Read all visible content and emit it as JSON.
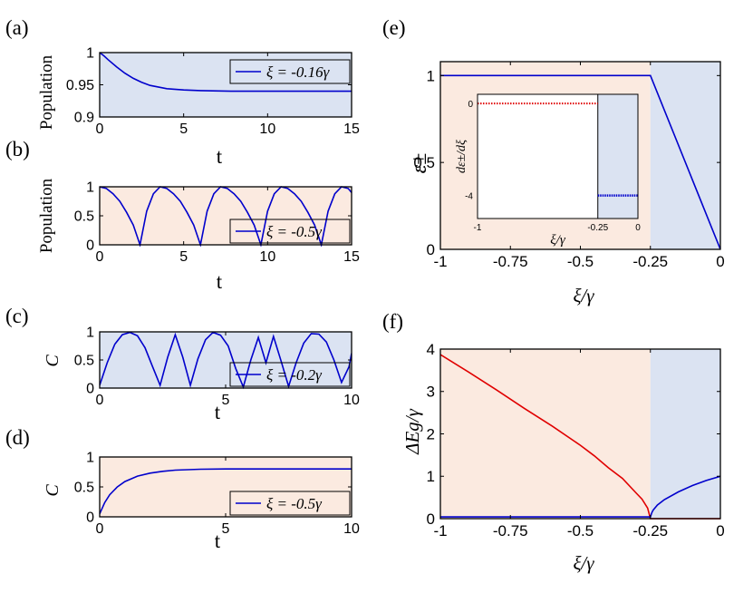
{
  "colors": {
    "blue_shade": "#dbe3f2",
    "orange_shade": "#fbeae0",
    "blue_line": "#0000cc",
    "red_line": "#e00000",
    "axis": "#000000"
  },
  "chart_data": [
    {
      "id": "a",
      "type": "line",
      "panel_label": "(a)",
      "xlabel": "t",
      "ylabel": "Population",
      "xlim": [
        0,
        15
      ],
      "ylim": [
        0.9,
        1.0
      ],
      "xticks": [
        0,
        5,
        10,
        15
      ],
      "xtick_labels": [
        "0",
        "5",
        "10",
        "15"
      ],
      "yticks": [
        0.9,
        0.95,
        1.0
      ],
      "ytick_labels": [
        "0.9",
        "0.95",
        "1"
      ],
      "background": "blue",
      "legend": "ξ = -0.16γ",
      "legend_position": "top-right",
      "series": [
        {
          "x": [
            0,
            0.25,
            0.5,
            1,
            1.5,
            2,
            2.5,
            3,
            4,
            5,
            6,
            8,
            10,
            12,
            15
          ],
          "y": [
            1.0,
            0.995,
            0.989,
            0.978,
            0.968,
            0.96,
            0.954,
            0.949,
            0.944,
            0.942,
            0.941,
            0.94,
            0.94,
            0.94,
            0.94
          ]
        }
      ]
    },
    {
      "id": "b",
      "type": "line",
      "panel_label": "(b)",
      "xlabel": "t",
      "ylabel": "Population",
      "xlim": [
        0,
        15
      ],
      "ylim": [
        0,
        1
      ],
      "xticks": [
        0,
        5,
        10,
        15
      ],
      "xtick_labels": [
        "0",
        "5",
        "10",
        "15"
      ],
      "yticks": [
        0,
        0.5,
        1
      ],
      "ytick_labels": [
        "0",
        "0.5",
        "1"
      ],
      "background": "orange",
      "legend": "ξ = -0.5γ",
      "legend_position": "bottom-right",
      "series": [
        {
          "x": [
            0,
            0.4,
            0.8,
            1.2,
            1.6,
            2.0,
            2.4,
            2.8,
            3.2,
            3.6,
            4.0,
            4.4,
            4.8,
            5.2,
            5.6,
            6.0,
            6.4,
            6.8,
            7.2,
            7.6,
            8.0,
            8.4,
            8.8,
            9.2,
            9.6,
            10.0,
            10.4,
            10.8,
            11.2,
            11.6,
            12.0,
            12.4,
            12.8,
            13.2,
            13.6,
            14.0,
            14.4,
            14.8,
            15.0
          ],
          "y": [
            1.0,
            0.97,
            0.88,
            0.75,
            0.56,
            0.34,
            0.0,
            0.58,
            0.88,
            1.0,
            0.97,
            0.88,
            0.75,
            0.56,
            0.34,
            0.0,
            0.58,
            0.88,
            1.0,
            0.97,
            0.88,
            0.75,
            0.56,
            0.34,
            0.0,
            0.58,
            0.88,
            1.0,
            0.97,
            0.88,
            0.75,
            0.56,
            0.34,
            0.0,
            0.58,
            0.88,
            1.0,
            0.97,
            0.9
          ]
        }
      ]
    },
    {
      "id": "c",
      "type": "line",
      "panel_label": "(c)",
      "xlabel": "t",
      "ylabel": "C",
      "xlim": [
        0,
        10
      ],
      "ylim": [
        0,
        1
      ],
      "xticks": [
        0,
        5,
        10
      ],
      "xtick_labels": [
        "0",
        "5",
        "10"
      ],
      "yticks": [
        0,
        0.5,
        1
      ],
      "ytick_labels": [
        "0",
        "0.5",
        "1"
      ],
      "background": "blue",
      "legend": "ξ = -0.2γ",
      "legend_position": "bottom-right",
      "series": [
        {
          "x": [
            0,
            0.3,
            0.6,
            0.9,
            1.2,
            1.5,
            1.8,
            2.1,
            2.4,
            2.7,
            3.0,
            3.3,
            3.6,
            3.9,
            4.2,
            4.5,
            4.8,
            5.1,
            5.4,
            5.7,
            6.0,
            6.3,
            6.6,
            6.9,
            7.2,
            7.5,
            7.8,
            8.1,
            8.4,
            8.7,
            9.0,
            9.3,
            9.6,
            9.9,
            10.0
          ],
          "y": [
            0.05,
            0.45,
            0.78,
            0.95,
            0.99,
            0.93,
            0.72,
            0.38,
            0.05,
            0.55,
            0.95,
            0.55,
            0.05,
            0.52,
            0.86,
            0.99,
            0.94,
            0.75,
            0.35,
            0.02,
            0.5,
            0.9,
            0.45,
            0.92,
            0.48,
            0.03,
            0.45,
            0.8,
            0.97,
            0.96,
            0.82,
            0.5,
            0.1,
            0.38,
            0.62
          ]
        }
      ]
    },
    {
      "id": "d",
      "type": "line",
      "panel_label": "(d)",
      "xlabel": "t",
      "ylabel": "C",
      "xlim": [
        0,
        10
      ],
      "ylim": [
        0,
        1
      ],
      "xticks": [
        0,
        5,
        10
      ],
      "xtick_labels": [
        "0",
        "5",
        "10"
      ],
      "yticks": [
        0,
        0.5,
        1
      ],
      "ytick_labels": [
        "0",
        "0.5",
        "1"
      ],
      "background": "orange",
      "legend": "ξ = -0.5γ",
      "legend_position": "bottom-right",
      "series": [
        {
          "x": [
            0,
            0.2,
            0.4,
            0.7,
            1.0,
            1.5,
            2.0,
            2.5,
            3.0,
            4.0,
            5.0,
            6.0,
            8.0,
            10.0
          ],
          "y": [
            0.05,
            0.24,
            0.37,
            0.5,
            0.59,
            0.68,
            0.73,
            0.76,
            0.78,
            0.795,
            0.8,
            0.8,
            0.8,
            0.8
          ]
        }
      ]
    },
    {
      "id": "e",
      "type": "line",
      "panel_label": "(e)",
      "xlabel": "ξ/γ",
      "ylabel": "ε±",
      "xlim": [
        -1,
        0
      ],
      "ylim": [
        0,
        1.08
      ],
      "xticks": [
        -1,
        -0.75,
        -0.5,
        -0.25,
        0
      ],
      "xtick_labels": [
        "-1",
        "-0.75",
        "-0.5",
        "-0.25",
        "0"
      ],
      "yticks": [
        0,
        0.5,
        1
      ],
      "ytick_labels": [
        "0",
        "0.5",
        "1"
      ],
      "background_split": -0.25,
      "series": [
        {
          "x": [
            -1,
            -0.25,
            0
          ],
          "y": [
            1,
            1,
            0
          ]
        }
      ],
      "inset": {
        "xlabel": "ξ/γ",
        "ylabel": "dε±/dξ",
        "xlim": [
          -1,
          0
        ],
        "ylim": [
          -5,
          0.4
        ],
        "xticks": [
          -1,
          -0.25,
          0
        ],
        "xtick_labels": [
          "-1",
          "-0.25",
          "0"
        ],
        "yticks": [
          0,
          -4
        ],
        "ytick_labels": [
          "0",
          "-4"
        ],
        "red_series": {
          "x": [
            -1,
            -0.25
          ],
          "y": [
            0,
            0
          ]
        },
        "blue_series": {
          "x": [
            -0.25,
            0
          ],
          "y": [
            -4,
            -4
          ]
        }
      }
    },
    {
      "id": "f",
      "type": "line",
      "panel_label": "(f)",
      "xlabel": "ξ/γ",
      "ylabel": "ΔEg/γ",
      "xlim": [
        -1,
        0
      ],
      "ylim": [
        0,
        4
      ],
      "xticks": [
        -1,
        -0.75,
        -0.5,
        -0.25,
        0
      ],
      "xtick_labels": [
        "-1",
        "-0.75",
        "-0.5",
        "-0.25",
        "0"
      ],
      "yticks": [
        0,
        1,
        2,
        3,
        4
      ],
      "ytick_labels": [
        "0",
        "1",
        "2",
        "3",
        "4"
      ],
      "background_split": -0.25,
      "series": [
        {
          "color": "red",
          "x": [
            -1,
            -0.9,
            -0.8,
            -0.7,
            -0.6,
            -0.5,
            -0.45,
            -0.4,
            -0.35,
            -0.3,
            -0.28,
            -0.26,
            -0.25,
            0
          ],
          "y": [
            3.87,
            3.46,
            3.04,
            2.6,
            2.18,
            1.73,
            1.48,
            1.2,
            0.95,
            0.6,
            0.46,
            0.25,
            0.0,
            0.0
          ]
        },
        {
          "color": "blue",
          "x": [
            -1,
            -0.25,
            -0.245,
            -0.24,
            -0.225,
            -0.2,
            -0.15,
            -0.1,
            -0.05,
            0
          ],
          "y": [
            0.04,
            0.04,
            0.14,
            0.2,
            0.32,
            0.45,
            0.63,
            0.78,
            0.9,
            1.0
          ]
        }
      ]
    }
  ]
}
